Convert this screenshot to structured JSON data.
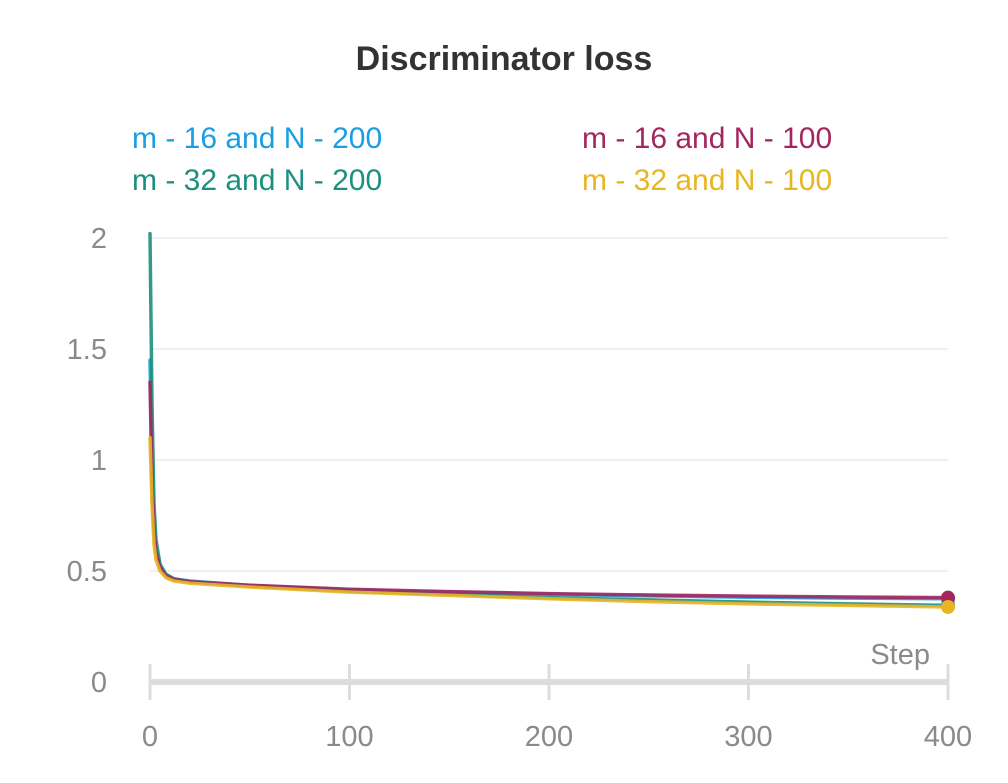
{
  "chart_data": {
    "type": "line",
    "title": "Discriminator loss",
    "xlabel": "Step",
    "ylabel": "",
    "xlim": [
      0,
      400
    ],
    "ylim": [
      0,
      2
    ],
    "x_ticks": [
      0,
      100,
      200,
      300,
      400
    ],
    "y_ticks": [
      0,
      0.5,
      1,
      1.5,
      2
    ],
    "y_tick_labels": [
      "0",
      "0.5",
      "1",
      "1.5",
      "2"
    ],
    "grid": true,
    "legend_position": "top",
    "series": [
      {
        "name": "m - 16 and N - 200",
        "color": "#1a9ee3",
        "x": [
          0,
          1,
          2,
          3,
          5,
          8,
          12,
          20,
          50,
          100,
          150,
          200,
          250,
          300,
          350,
          400
        ],
        "y": [
          1.45,
          0.95,
          0.7,
          0.6,
          0.52,
          0.48,
          0.465,
          0.455,
          0.435,
          0.415,
          0.405,
          0.395,
          0.388,
          0.382,
          0.378,
          0.375
        ]
      },
      {
        "name": "m - 32 and N - 200",
        "color": "#1d8f7e",
        "x": [
          0,
          1,
          2,
          3,
          5,
          8,
          12,
          20,
          50,
          100,
          150,
          200,
          250,
          300,
          350,
          400
        ],
        "y": [
          2.02,
          1.25,
          0.8,
          0.64,
          0.53,
          0.485,
          0.465,
          0.452,
          0.432,
          0.41,
          0.395,
          0.38,
          0.37,
          0.36,
          0.352,
          0.345
        ]
      },
      {
        "name": "m - 16 and N - 100",
        "color": "#a3275f",
        "x": [
          0,
          1,
          2,
          3,
          5,
          8,
          12,
          20,
          50,
          100,
          150,
          200,
          250,
          300,
          350,
          400
        ],
        "y": [
          1.35,
          0.9,
          0.68,
          0.58,
          0.515,
          0.478,
          0.462,
          0.452,
          0.436,
          0.418,
          0.407,
          0.398,
          0.392,
          0.387,
          0.383,
          0.38
        ]
      },
      {
        "name": "m - 32 and N - 100",
        "color": "#e8b523",
        "x": [
          0,
          1,
          2,
          3,
          5,
          8,
          12,
          20,
          50,
          100,
          150,
          200,
          250,
          300,
          350,
          400
        ],
        "y": [
          1.1,
          0.8,
          0.62,
          0.55,
          0.5,
          0.47,
          0.455,
          0.445,
          0.428,
          0.405,
          0.39,
          0.375,
          0.362,
          0.352,
          0.345,
          0.338
        ]
      }
    ]
  }
}
